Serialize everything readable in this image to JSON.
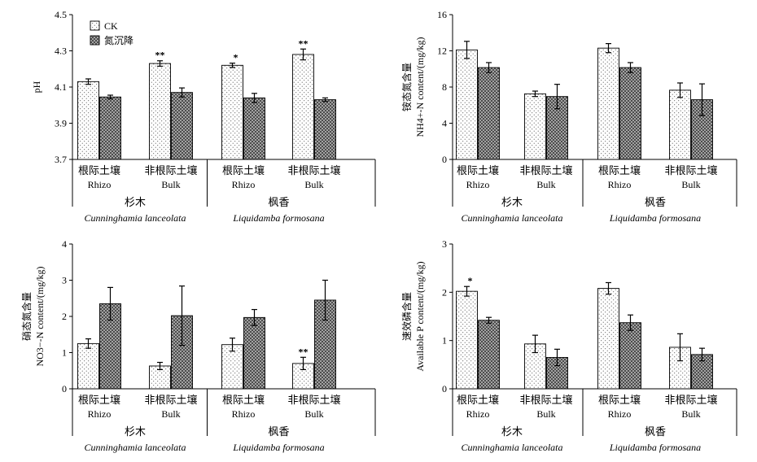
{
  "legend": {
    "items": [
      "CK",
      "氮沉降"
    ]
  },
  "categories_cn": [
    "根际土壤",
    "非根际土壤",
    "根际土壤",
    "非根际土壤"
  ],
  "categories_en": [
    "Rhizo",
    "Bulk",
    "Rhizo",
    "Bulk"
  ],
  "groups_cn": [
    "杉木",
    "枫香"
  ],
  "groups_en": [
    "Cunninghamia lanceolata",
    "Liquidamba formosana"
  ],
  "chart_data": [
    {
      "type": "bar",
      "ylabel": "pH",
      "ylim": [
        3.7,
        4.5
      ],
      "yticks": [
        "3.7",
        "3.9",
        "4.1",
        "4.3",
        "4.5"
      ],
      "categories": [
        "根际土壤 Rhizo",
        "非根际土壤 Bulk",
        "根际土壤 Rhizo",
        "非根际土壤 Bulk"
      ],
      "series": [
        {
          "name": "CK",
          "values": [
            4.13,
            4.23,
            4.22,
            4.28
          ],
          "errors": [
            0.015,
            0.015,
            0.012,
            0.03
          ]
        },
        {
          "name": "氮沉降",
          "values": [
            4.045,
            4.07,
            4.04,
            4.03
          ],
          "errors": [
            0.01,
            0.025,
            0.025,
            0.01
          ]
        }
      ],
      "significance": [
        "",
        "**",
        "*",
        "**"
      ]
    },
    {
      "type": "bar",
      "ylabel": "铵态氮含量",
      "ylabel2": "NH4+-N content/(mg/kg)",
      "ylim": [
        0,
        16
      ],
      "yticks": [
        "0",
        "4",
        "8",
        "12",
        "16"
      ],
      "categories": [
        "根际土壤 Rhizo",
        "非根际土壤 Bulk",
        "根际土壤 Rhizo",
        "非根际土壤 Bulk"
      ],
      "series": [
        {
          "name": "CK",
          "values": [
            12.1,
            7.25,
            12.3,
            7.65
          ],
          "errors": [
            0.95,
            0.3,
            0.5,
            0.8
          ]
        },
        {
          "name": "氮沉降",
          "values": [
            10.15,
            6.95,
            10.15,
            6.6
          ],
          "errors": [
            0.55,
            1.35,
            0.55,
            1.75
          ]
        }
      ],
      "significance": [
        "",
        "",
        "",
        ""
      ]
    },
    {
      "type": "bar",
      "ylabel": "硝态氮含量",
      "ylabel2": "NO3−-N content/(mg/kg)",
      "ylim": [
        0,
        4
      ],
      "yticks": [
        "0",
        "1",
        "2",
        "3",
        "4"
      ],
      "categories": [
        "根际土壤 Rhizo",
        "非根际土壤 Bulk",
        "根际土壤 Rhizo",
        "非根际土壤 Bulk"
      ],
      "series": [
        {
          "name": "CK",
          "values": [
            1.25,
            0.63,
            1.22,
            0.7
          ],
          "errors": [
            0.13,
            0.1,
            0.18,
            0.17
          ]
        },
        {
          "name": "氮沉降",
          "values": [
            2.35,
            2.02,
            1.97,
            2.45
          ],
          "errors": [
            0.45,
            0.82,
            0.22,
            0.55
          ]
        }
      ],
      "significance": [
        "",
        "",
        "",
        "**"
      ]
    },
    {
      "type": "bar",
      "ylabel": "速效磷含量",
      "ylabel2": "Available P content/(mg/kg)",
      "ylim": [
        0,
        3
      ],
      "yticks": [
        "0",
        "1",
        "2",
        "3"
      ],
      "categories": [
        "根际土壤 Rhizo",
        "非根际土壤 Bulk",
        "根际土壤 Rhizo",
        "非根际土壤 Bulk"
      ],
      "series": [
        {
          "name": "CK",
          "values": [
            2.02,
            0.93,
            2.08,
            0.86
          ],
          "errors": [
            0.1,
            0.18,
            0.12,
            0.28
          ]
        },
        {
          "name": "氮沉降",
          "values": [
            1.42,
            0.65,
            1.37,
            0.71
          ],
          "errors": [
            0.06,
            0.17,
            0.16,
            0.13
          ]
        }
      ],
      "significance": [
        "*",
        "",
        "",
        ""
      ]
    }
  ]
}
